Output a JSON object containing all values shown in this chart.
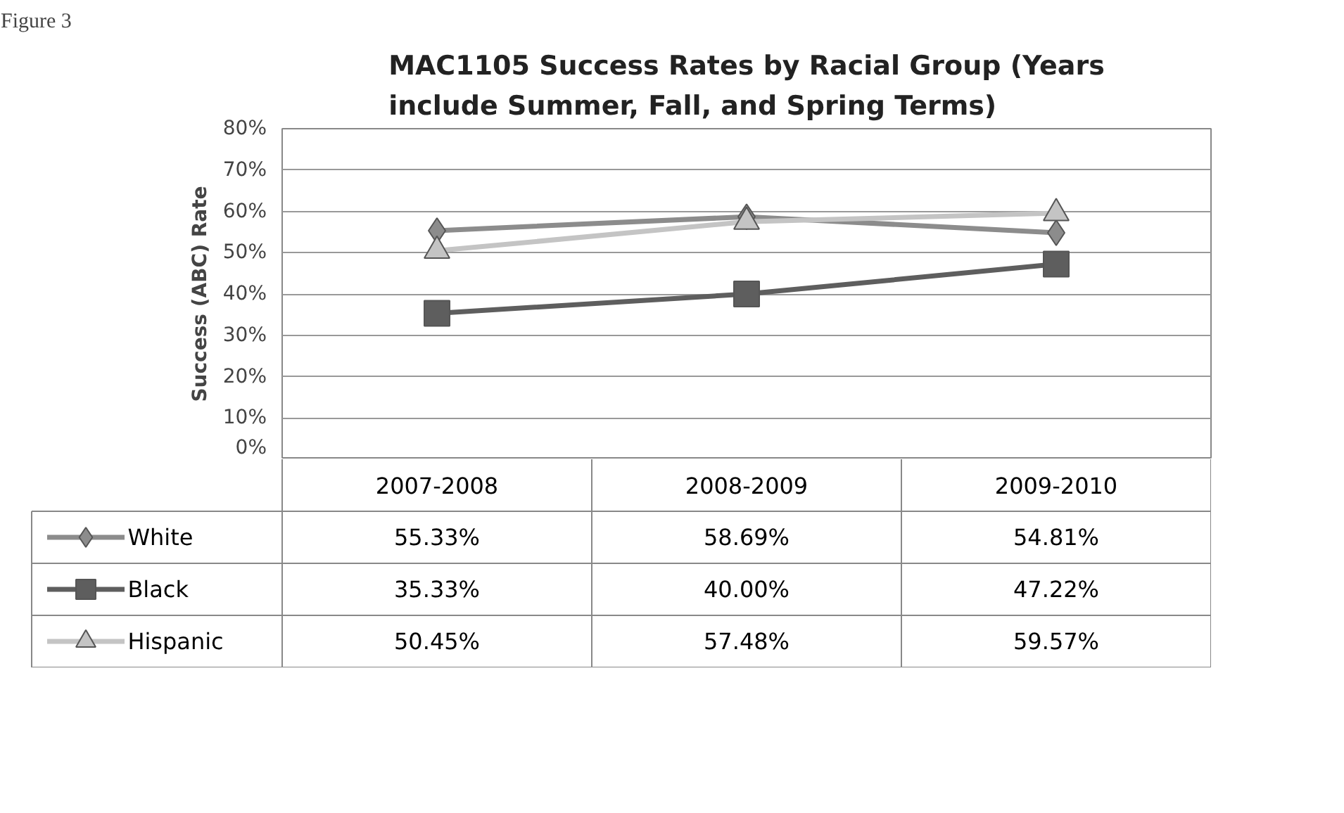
{
  "chart_data": {
    "type": "line",
    "title": "MAC1105 Success Rates by Racial Group (Years include Summer, Fall, and Spring Terms)",
    "ylabel": "Success (ABC) Rate",
    "annotations": [
      "Figure 3"
    ],
    "categories": [
      "2007-2008",
      "2008-2009",
      "2009-2010"
    ],
    "ylim": [
      0,
      80
    ],
    "yticks": [
      {
        "value": 0,
        "label": "0%"
      },
      {
        "value": 10,
        "label": "10%"
      },
      {
        "value": 20,
        "label": "20%"
      },
      {
        "value": 30,
        "label": "30%"
      },
      {
        "value": 40,
        "label": "40%"
      },
      {
        "value": 50,
        "label": "50%"
      },
      {
        "value": 60,
        "label": "60%"
      },
      {
        "value": 70,
        "label": "70%"
      },
      {
        "value": 80,
        "label": "80%"
      }
    ],
    "grid": "y",
    "legend": "bottom left",
    "line_style": "solid",
    "series": [
      {
        "name": "White",
        "color": "#8c8c8c",
        "marker": "diamond",
        "values": [
          55.33,
          58.69,
          54.81
        ],
        "value_labels": [
          "55.33%",
          "58.69%",
          "54.81%"
        ]
      },
      {
        "name": "Black",
        "color": "#5e5e5e",
        "marker": "square",
        "values": [
          35.33,
          40.0,
          47.22
        ],
        "value_labels": [
          "35.33%",
          "40.00%",
          "47.22%"
        ]
      },
      {
        "name": "Hispanic",
        "color": "#c4c4c4",
        "marker": "triangle",
        "values": [
          50.45,
          57.48,
          59.57
        ],
        "value_labels": [
          "50.45%",
          "57.48%",
          "59.57%"
        ]
      }
    ]
  }
}
